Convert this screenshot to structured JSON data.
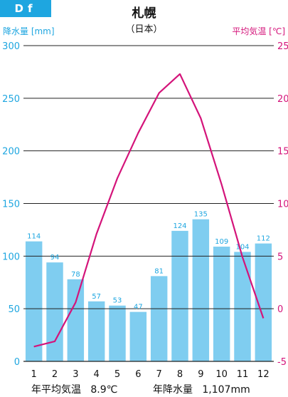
{
  "badge": "Df",
  "title": "札幌",
  "subtitle": "（日本）",
  "summary": {
    "temp_label": "年平均気温",
    "temp_value": "8.9℃",
    "precip_label": "年降水量",
    "precip_value": "1,107mm"
  },
  "colors": {
    "bar": "#7fcdf0",
    "bar_label": "#1ea6e0",
    "line": "#d4147a",
    "left_axis": "#1ea6e0",
    "right_axis": "#d4147a"
  },
  "chart_data": {
    "type": "bar",
    "categories": [
      "1",
      "2",
      "3",
      "4",
      "5",
      "6",
      "7",
      "8",
      "9",
      "10",
      "11",
      "12"
    ],
    "series": [
      {
        "name": "降水量",
        "type": "bar",
        "axis": "left",
        "values": [
          114,
          94,
          78,
          57,
          53,
          47,
          81,
          124,
          135,
          109,
          104,
          112
        ]
      },
      {
        "name": "平均気温",
        "type": "line",
        "axis": "right",
        "values": [
          -3.6,
          -3.1,
          0.6,
          7.1,
          12.4,
          16.7,
          20.5,
          22.3,
          18.1,
          11.8,
          4.9,
          -0.9
        ]
      }
    ],
    "ylabel": "降水量 [mm]",
    "y2label": "平均気温 [℃]",
    "ylim": [
      0,
      300
    ],
    "y2lim": [
      -5,
      25
    ],
    "yticks": [
      0,
      50,
      100,
      150,
      200,
      250,
      300
    ],
    "y2ticks": [
      -5,
      0,
      5,
      10,
      15,
      20,
      25
    ],
    "grid": true
  }
}
